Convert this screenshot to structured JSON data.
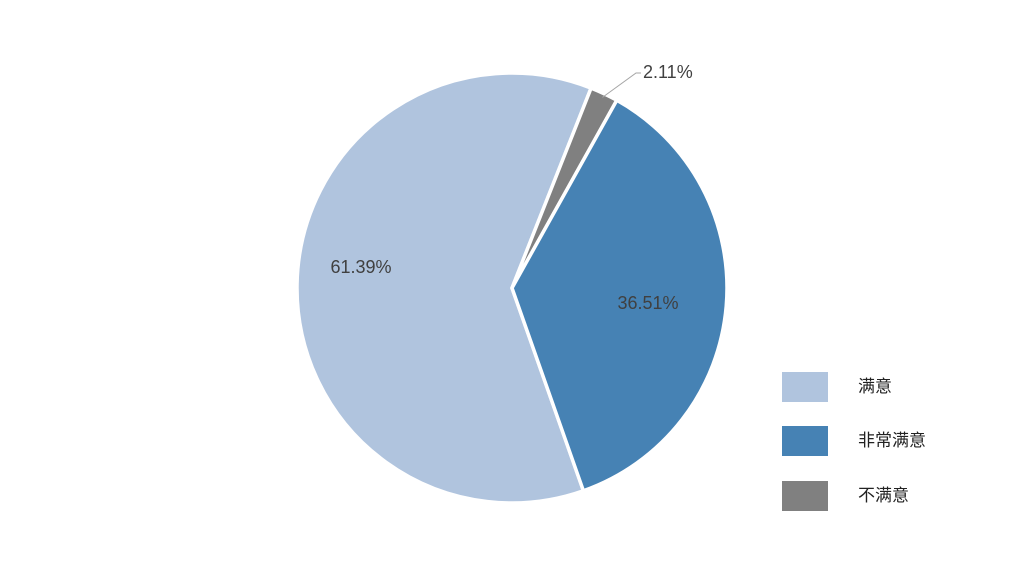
{
  "chart_data": {
    "type": "pie",
    "categories": [
      "满意",
      "非常满意",
      "不满意"
    ],
    "values": [
      61.39,
      36.51,
      2.11
    ],
    "data_labels": [
      "61.39%",
      "36.51%",
      "2.11%"
    ],
    "colors": [
      "#B0C4DE",
      "#4682B4",
      "#808080"
    ],
    "legend": {
      "placement": "bottom-right",
      "entries": [
        "满意",
        "非常满意",
        "不满意"
      ]
    }
  }
}
